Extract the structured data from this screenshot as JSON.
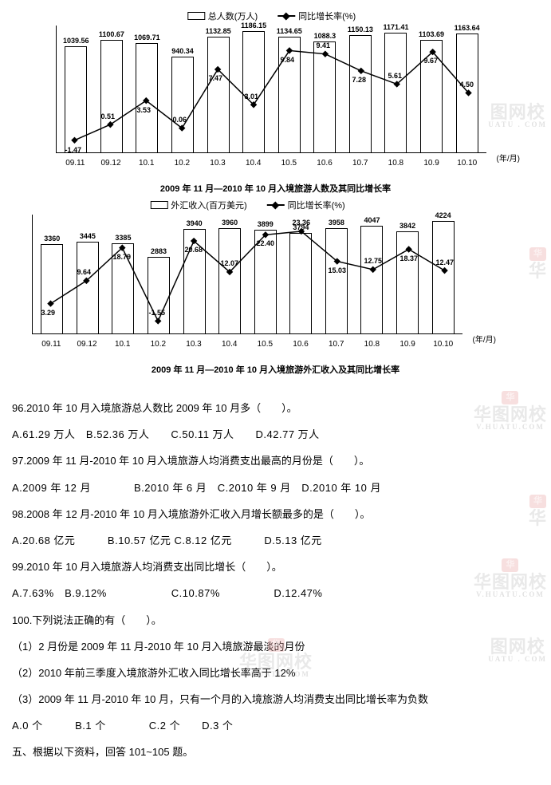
{
  "chart1": {
    "type": "bar-line",
    "legend_bar": "总人数(万人)",
    "legend_line": "同比增长率(%)",
    "title": "2009 年 11 月—2010 年 10 月入境旅游人数及其同比增长率",
    "x_title": "(年/月)",
    "categories": [
      "09.11",
      "09.12",
      "10.1",
      "10.2",
      "10.3",
      "10.4",
      "10.5",
      "10.6",
      "10.7",
      "10.8",
      "10.9",
      "10.10"
    ],
    "bar_values": [
      1039.56,
      1100.67,
      1069.71,
      940.34,
      1132.85,
      1186.15,
      1134.65,
      1088.3,
      1150.13,
      1171.41,
      1103.69,
      1163.64
    ],
    "bar_max": 1250,
    "line_values": [
      -1.47,
      0.51,
      3.53,
      0.06,
      7.47,
      3.01,
      9.84,
      9.41,
      7.28,
      5.61,
      9.67,
      4.5
    ],
    "line_min": -3,
    "line_max": 13,
    "bar_color": "#ffffff",
    "border_color": "#000000",
    "line_color": "#000000"
  },
  "chart2": {
    "type": "bar-line",
    "legend_bar": "外汇收入(百万美元)",
    "legend_line": "同比增长率(%)",
    "title": "2009 年 11 月—2010 年 10 月入境旅游外汇收入及其同比增长率",
    "x_title": "(年/月)",
    "categories": [
      "09.11",
      "09.12",
      "10.1",
      "10.2",
      "10.3",
      "10.4",
      "10.5",
      "10.6",
      "10.7",
      "10.8",
      "10.9",
      "10.10"
    ],
    "bar_values": [
      3360,
      3445,
      3385,
      2883,
      3940,
      3960,
      3899,
      3794,
      3958,
      4047,
      3842,
      4224
    ],
    "bar_max": 4500,
    "line_values": [
      3.29,
      9.64,
      18.79,
      -1.55,
      20.68,
      12.07,
      22.4,
      23.36,
      15.03,
      12.75,
      18.37,
      12.47
    ],
    "line_min": -5,
    "line_max": 28,
    "bar_color": "#ffffff",
    "border_color": "#000000",
    "line_color": "#000000"
  },
  "questions": {
    "q96": {
      "stem": "96.2010 年 10 月入境旅游总人数比 2009 年 10 月多（　　）。",
      "opts": "A.61.29 万人　B.52.36 万人　　C.50.11 万人　　D.42.77 万人"
    },
    "q97": {
      "stem": "97.2009 年 11 月-2010 年 10 月入境旅游人均消费支出最高的月份是（　　）。",
      "opts": "A.2009 年 12 月　　　　B.2010 年 6 月　C.2010 年 9 月　D.2010 年 10 月"
    },
    "q98": {
      "stem": "98.2008 年 12 月-2010 年 10 月入境旅游外汇收入月增长额最多的是（　　）。",
      "opts": "A.20.68 亿元　　　B.10.57 亿元 C.8.12 亿元　　　D.5.13 亿元"
    },
    "q99": {
      "stem": "99.2010 年 10 月入境旅游人均消费支出同比增长（　　）。",
      "opts": "A.7.63%　B.9.12%　　　　　　C.10.87%　　　　　D.12.47%"
    },
    "q100": {
      "stem": "100.下列说法正确的有（　　）。",
      "s1": "（1）2 月份是 2009 年 11 月-2010 年 10 月入境旅游最淡的月份",
      "s2": "（2）2010 年前三季度入境旅游外汇收入同比增长率高于 12%",
      "s3": "（3）2009 年 11 月-2010 年 10 月，只有一个月的入境旅游人均消费支出同比增长率为负数",
      "opts": "A.0 个　　　B.1 个　　　　C.2 个　　D.3 个"
    },
    "section5": "五、根据以下资料，回答 101~105 题。"
  }
}
